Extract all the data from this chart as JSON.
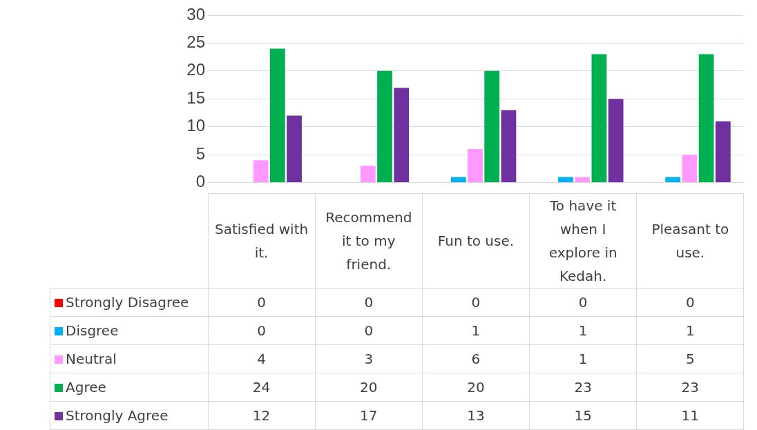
{
  "chart_data": {
    "type": "bar",
    "categories": [
      "Satisfied with it.",
      "Recommend it to my friend.",
      "Fun to use.",
      "To have it when I explore in Kedah.",
      "Pleasant to use."
    ],
    "series": [
      {
        "name": "Strongly Disagree",
        "color": "#ff0000",
        "values": [
          0,
          0,
          0,
          0,
          0
        ]
      },
      {
        "name": "Disgree",
        "color": "#00b0f0",
        "values": [
          0,
          0,
          1,
          1,
          1
        ]
      },
      {
        "name": "Neutral",
        "color": "#ff99ff",
        "values": [
          4,
          3,
          6,
          1,
          5
        ]
      },
      {
        "name": "Agree",
        "color": "#00b050",
        "values": [
          24,
          20,
          20,
          23,
          23
        ]
      },
      {
        "name": "Strongly Agree",
        "color": "#7030a0",
        "values": [
          12,
          17,
          13,
          15,
          11
        ]
      }
    ],
    "ylim": [
      0,
      30
    ],
    "yticks": [
      0,
      5,
      10,
      15,
      20,
      25,
      30
    ],
    "grid": "y",
    "legend": "bottom",
    "data_labels": true
  }
}
